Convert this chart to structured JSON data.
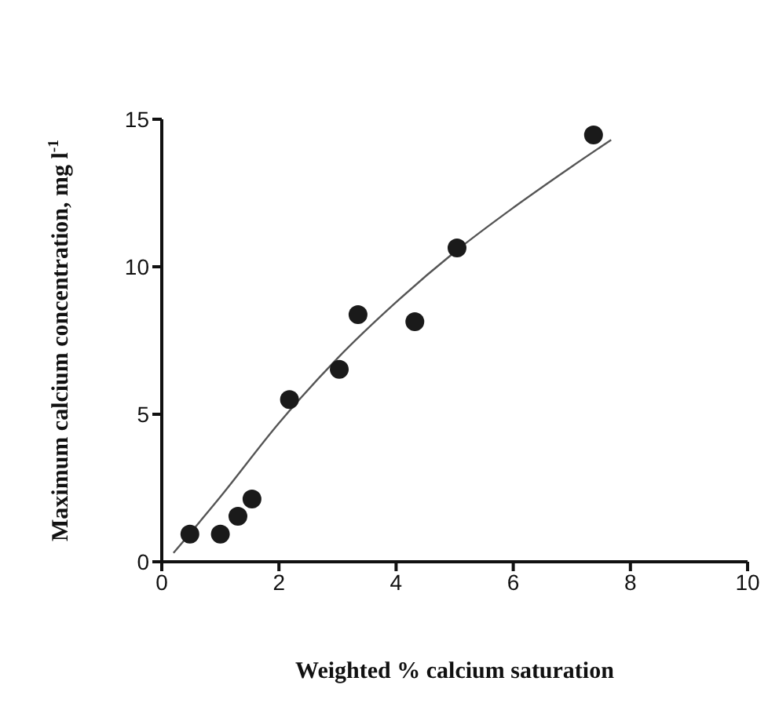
{
  "chart_data": {
    "type": "scatter",
    "xlabel": "Weighted % calcium saturation",
    "ylabel": "Maximum calcium concentration, mg l$^{-1}$",
    "xlim": [
      0,
      10
    ],
    "xticks": [
      0,
      2,
      4,
      6,
      8,
      10
    ],
    "ylim": [
      0,
      15
    ],
    "yticks": [
      0,
      5,
      10,
      15
    ],
    "series": [
      {
        "color": "#1a1a1a",
        "marker": "circle",
        "x": [
          0.48,
          1.0,
          1.3,
          1.54,
          2.18,
          3.03,
          3.35,
          4.32,
          5.04,
          7.37
        ],
        "values": [
          0.94,
          0.94,
          1.54,
          2.13,
          5.5,
          6.52,
          8.38,
          8.14,
          10.64,
          14.47
        ]
      },
      {
        "type": "line",
        "color": "#555555",
        "marker": "none",
        "line_style": "solid",
        "x": [
          0.2,
          1,
          2,
          3,
          4,
          5,
          6,
          7,
          7.67
        ],
        "values": [
          0.3,
          2.2,
          4.7,
          6.9,
          8.8,
          10.5,
          12.0,
          13.4,
          14.3
        ]
      }
    ]
  }
}
